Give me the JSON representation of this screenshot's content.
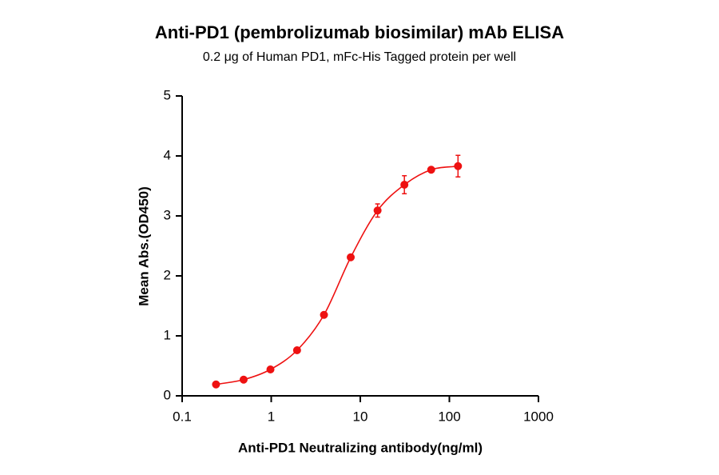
{
  "chart_data": {
    "type": "scatter",
    "title": "Anti-PD1 (pembrolizumab biosimilar) mAb ELISA",
    "subtitle": "0.2 μg of Human PD1, mFc-His Tagged protein per well",
    "x_label": "Anti-PD1 Neutralizing antibody(ng/ml)",
    "y_label": "Mean Abs.(OD450)",
    "x": [
      0.24,
      0.49,
      0.98,
      1.95,
      3.91,
      7.81,
      15.63,
      31.25,
      62.5,
      125
    ],
    "values": [
      0.19,
      0.27,
      0.44,
      0.76,
      1.35,
      2.31,
      3.09,
      3.52,
      3.77,
      3.83
    ],
    "errors": [
      0.02,
      0.02,
      0.02,
      0.03,
      0.03,
      0.04,
      0.11,
      0.15,
      0.04,
      0.18
    ],
    "color": "#ee1111",
    "xscale": "log",
    "xlim": [
      0.1,
      1000
    ],
    "xticks": [
      0.1,
      1,
      10,
      100,
      1000
    ],
    "ylim": [
      0,
      5
    ],
    "yticks": [
      0,
      1,
      2,
      3,
      4,
      5
    ],
    "grid": false
  }
}
